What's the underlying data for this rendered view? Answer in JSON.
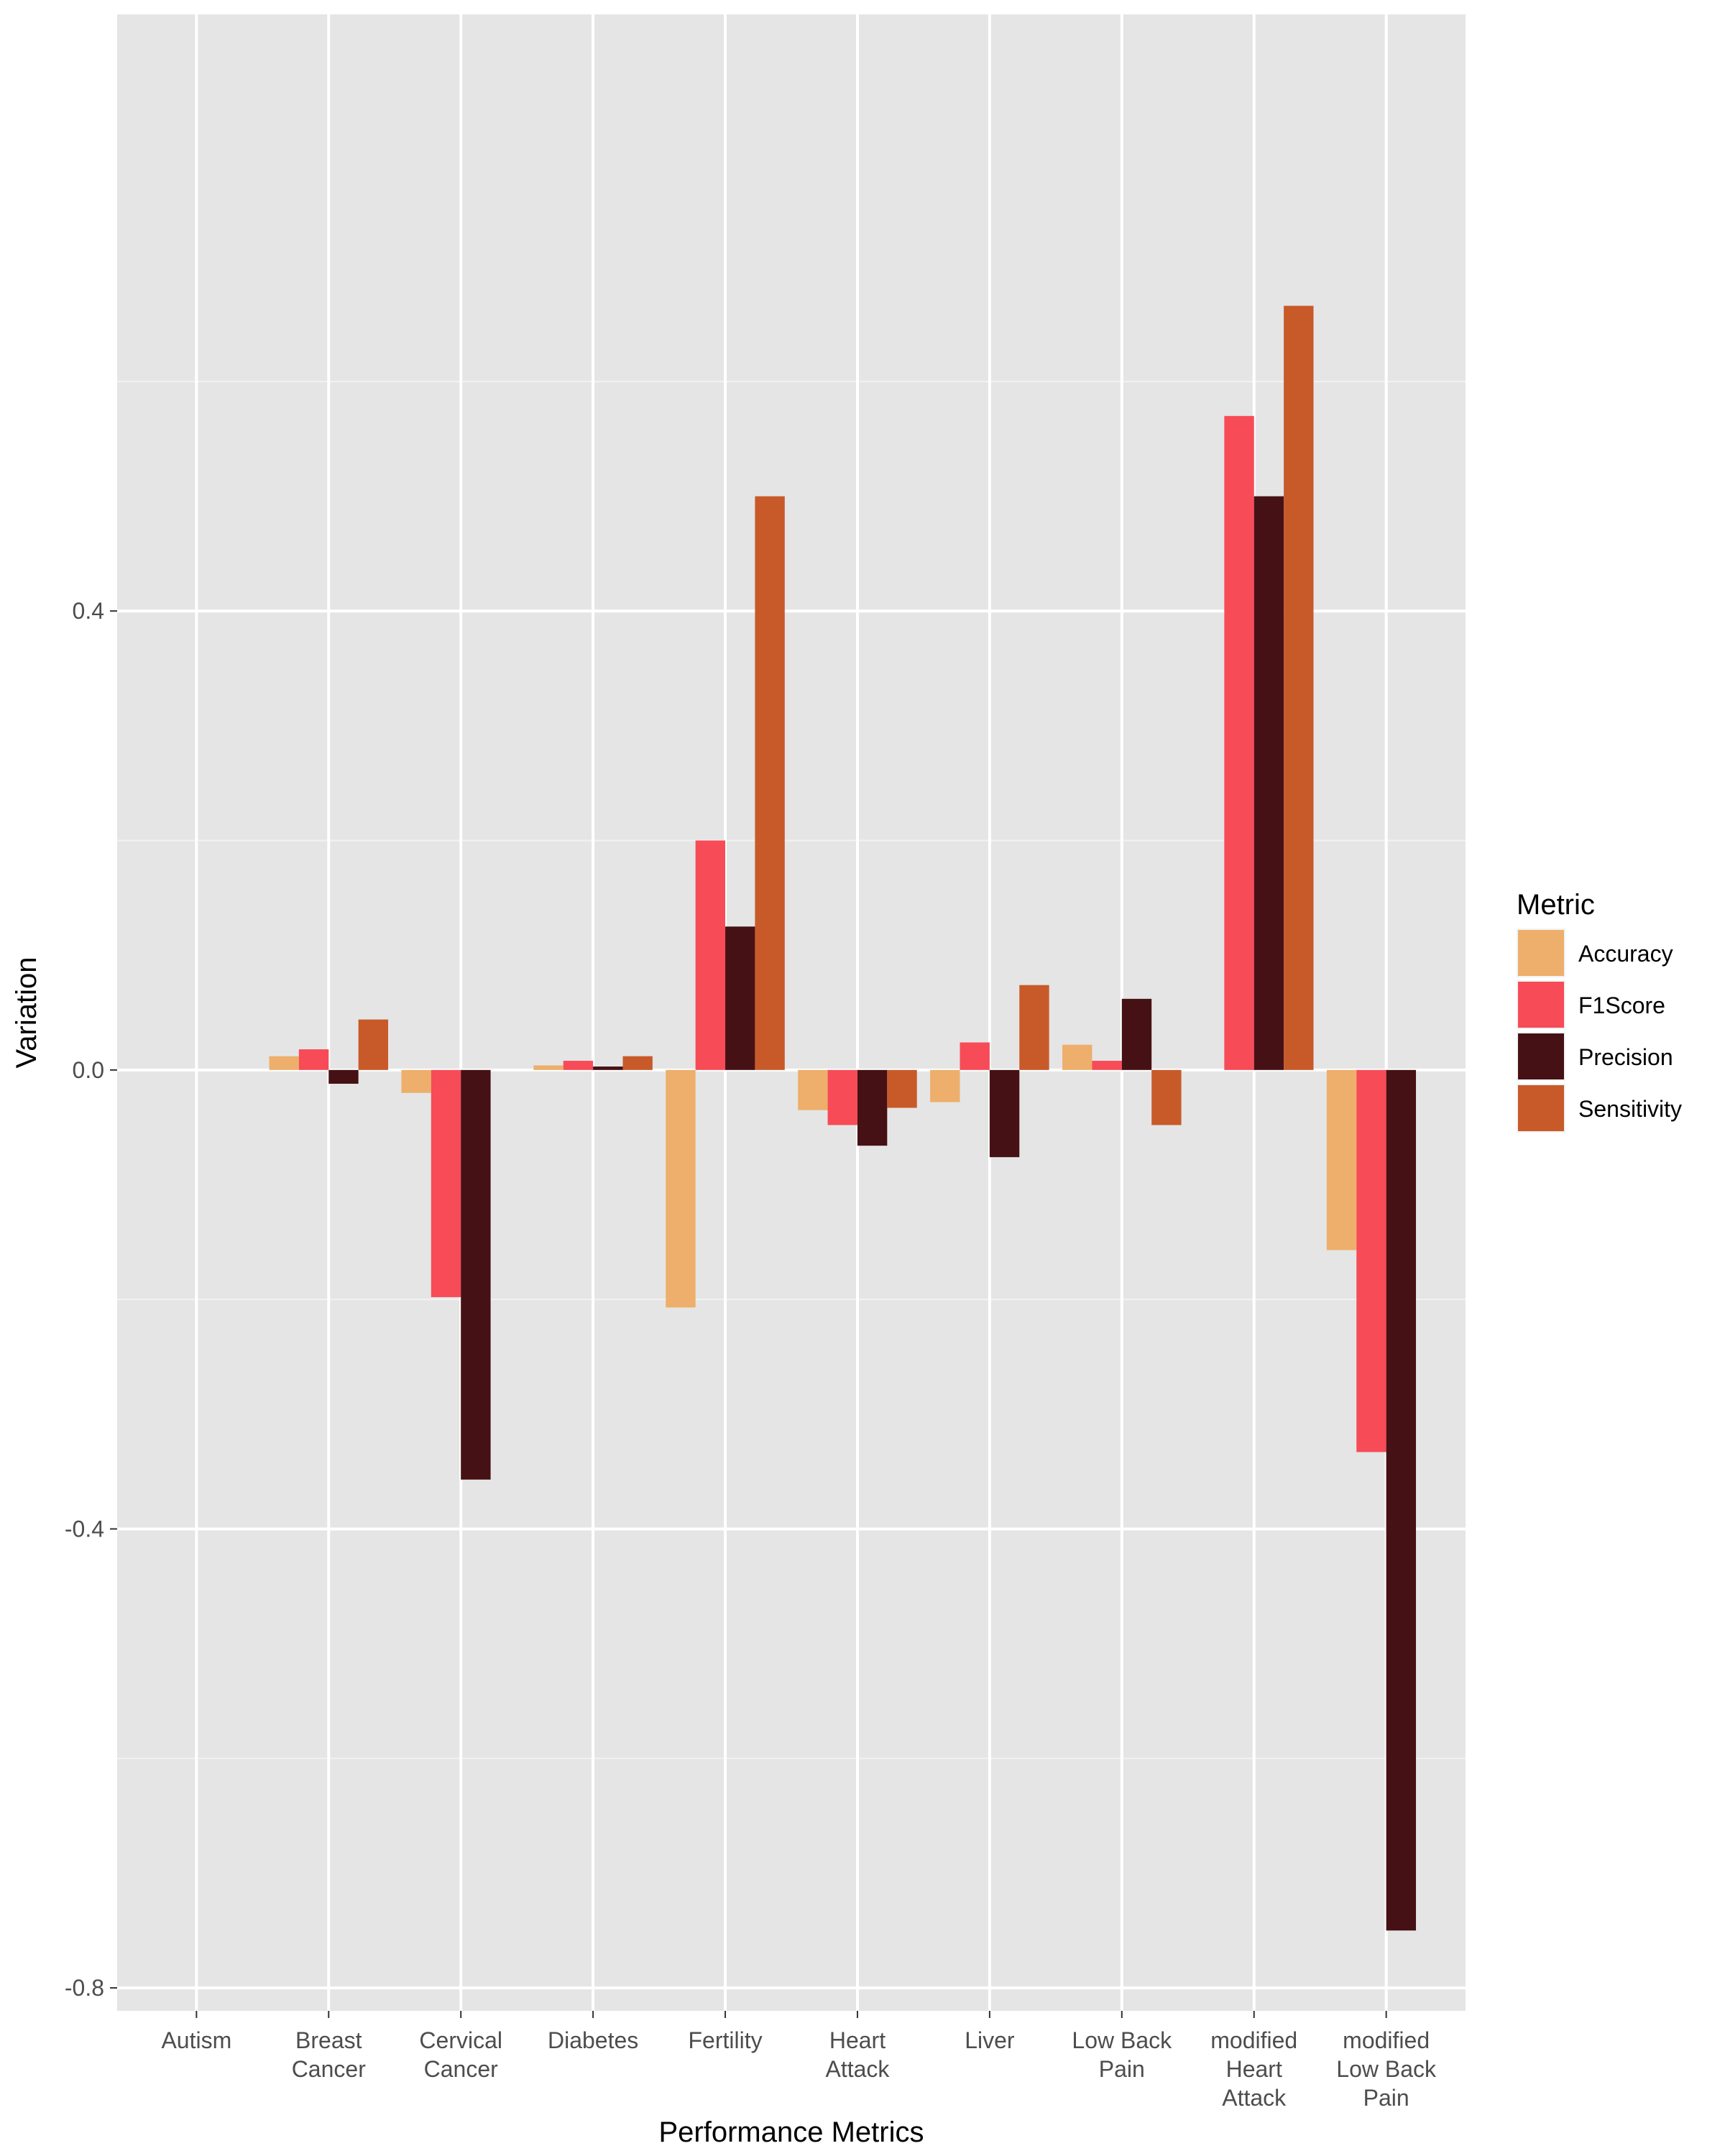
{
  "chart_data": {
    "type": "bar",
    "xlabel": "Performance Metrics",
    "ylabel": "Variation",
    "ylim": [
      -0.82,
      0.92
    ],
    "y_ticks": [
      "0.4",
      "0.0",
      "-0.4",
      "-0.8"
    ],
    "y_tick_values": [
      0.4,
      0.0,
      -0.4,
      -0.8
    ],
    "grid": true,
    "legend_position": "right",
    "legend_title": "Metric",
    "categories": [
      [
        "Autism"
      ],
      [
        "Breast",
        "Cancer"
      ],
      [
        "Cervical",
        "Cancer"
      ],
      [
        "Diabetes"
      ],
      [
        "Fertility"
      ],
      [
        "Heart",
        "Attack"
      ],
      [
        "Liver"
      ],
      [
        "Low Back",
        "Pain"
      ],
      [
        "modified",
        "Heart",
        "Attack"
      ],
      [
        "modified",
        "Low Back",
        "Pain"
      ]
    ],
    "series": [
      {
        "name": "Accuracy",
        "color": "#EDAF6B",
        "values": [
          0.0,
          0.012,
          -0.02,
          0.004,
          -0.207,
          -0.035,
          -0.028,
          0.022,
          0.0,
          -0.157
        ]
      },
      {
        "name": "F1Score",
        "color": "#F74B57",
        "values": [
          0.0,
          0.018,
          -0.198,
          0.008,
          0.2,
          -0.048,
          0.024,
          0.008,
          0.57,
          -0.333
        ]
      },
      {
        "name": "Precision",
        "color": "#461114",
        "values": [
          0.0,
          -0.012,
          -0.357,
          0.003,
          0.125,
          -0.066,
          -0.076,
          0.062,
          0.5,
          -0.75
        ]
      },
      {
        "name": "Sensitivity",
        "color": "#C85A2A",
        "values": [
          0.0,
          0.044,
          0.0,
          0.012,
          0.5,
          -0.033,
          0.074,
          -0.048,
          0.666,
          0.0
        ]
      }
    ]
  }
}
